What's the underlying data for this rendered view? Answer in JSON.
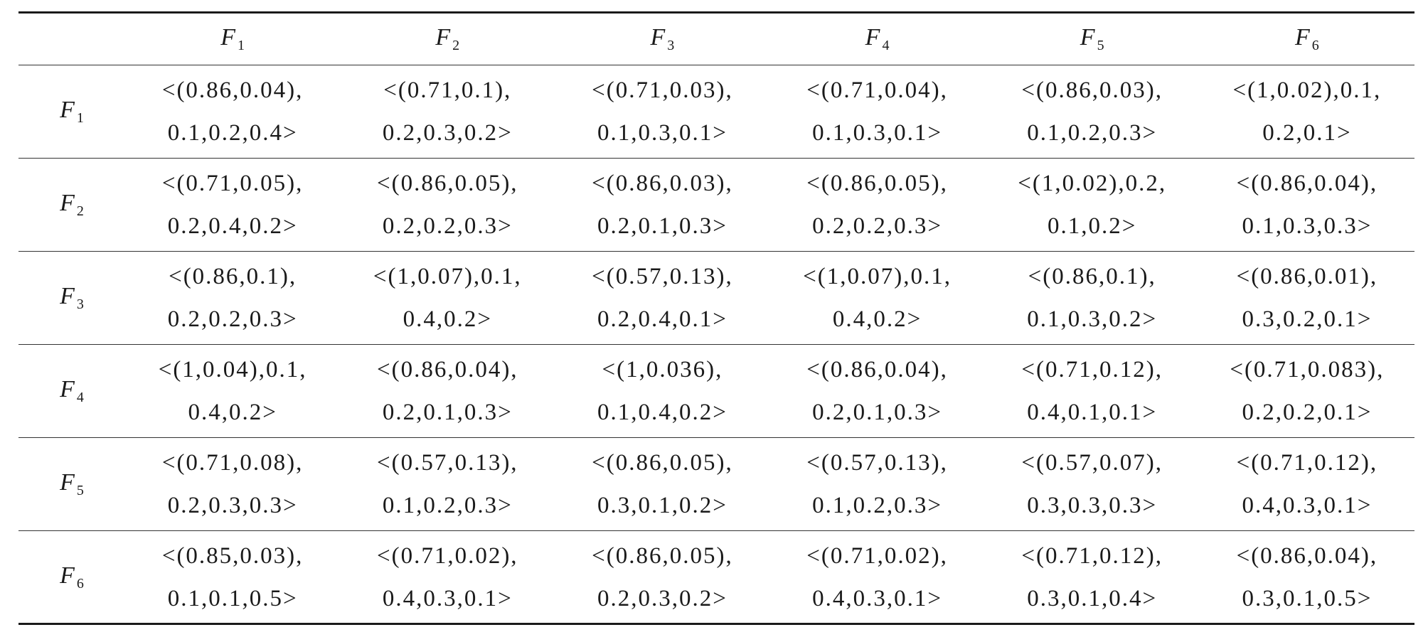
{
  "table": {
    "factor_symbol": "F",
    "columns": [
      "1",
      "2",
      "3",
      "4",
      "5",
      "6"
    ],
    "rows": [
      {
        "label": "1",
        "cells": [
          [
            "<(0.86,0.04),",
            "0.1,0.2,0.4>"
          ],
          [
            "<(0.71,0.1),",
            "0.2,0.3,0.2>"
          ],
          [
            "<(0.71,0.03),",
            "0.1,0.3,0.1>"
          ],
          [
            "<(0.71,0.04),",
            "0.1,0.3,0.1>"
          ],
          [
            "<(0.86,0.03),",
            "0.1,0.2,0.3>"
          ],
          [
            "<(1,0.02),0.1,",
            "0.2,0.1>"
          ]
        ]
      },
      {
        "label": "2",
        "cells": [
          [
            "<(0.71,0.05),",
            "0.2,0.4,0.2>"
          ],
          [
            "<(0.86,0.05),",
            "0.2,0.2,0.3>"
          ],
          [
            "<(0.86,0.03),",
            "0.2,0.1,0.3>"
          ],
          [
            "<(0.86,0.05),",
            "0.2,0.2,0.3>"
          ],
          [
            "<(1,0.02),0.2,",
            "0.1,0.2>"
          ],
          [
            "<(0.86,0.04),",
            "0.1,0.3,0.3>"
          ]
        ]
      },
      {
        "label": "3",
        "cells": [
          [
            "<(0.86,0.1),",
            "0.2,0.2,0.3>"
          ],
          [
            "<(1,0.07),0.1,",
            "0.4,0.2>"
          ],
          [
            "<(0.57,0.13),",
            "0.2,0.4,0.1>"
          ],
          [
            "<(1,0.07),0.1,",
            "0.4,0.2>"
          ],
          [
            "<(0.86,0.1),",
            "0.1,0.3,0.2>"
          ],
          [
            "<(0.86,0.01),",
            "0.3,0.2,0.1>"
          ]
        ]
      },
      {
        "label": "4",
        "cells": [
          [
            "<(1,0.04),0.1,",
            "0.4,0.2>"
          ],
          [
            "<(0.86,0.04),",
            "0.2,0.1,0.3>"
          ],
          [
            "<(1,0.036),",
            "0.1,0.4,0.2>"
          ],
          [
            "<(0.86,0.04),",
            "0.2,0.1,0.3>"
          ],
          [
            "<(0.71,0.12),",
            "0.4,0.1,0.1>"
          ],
          [
            "<(0.71,0.083),",
            "0.2,0.2,0.1>"
          ]
        ]
      },
      {
        "label": "5",
        "cells": [
          [
            "<(0.71,0.08),",
            "0.2,0.3,0.3>"
          ],
          [
            "<(0.57,0.13),",
            "0.1,0.2,0.3>"
          ],
          [
            "<(0.86,0.05),",
            "0.3,0.1,0.2>"
          ],
          [
            "<(0.57,0.13),",
            "0.1,0.2,0.3>"
          ],
          [
            "<(0.57,0.07),",
            "0.3,0.3,0.3>"
          ],
          [
            "<(0.71,0.12),",
            "0.4,0.3,0.1>"
          ]
        ]
      },
      {
        "label": "6",
        "cells": [
          [
            "<(0.85,0.03),",
            "0.1,0.1,0.5>"
          ],
          [
            "<(0.71,0.02),",
            "0.4,0.3,0.1>"
          ],
          [
            "<(0.86,0.05),",
            "0.2,0.3,0.2>"
          ],
          [
            "<(0.71,0.02),",
            "0.4,0.3,0.1>"
          ],
          [
            "<(0.71,0.12),",
            "0.3,0.1,0.4>"
          ],
          [
            "<(0.86,0.04),",
            "0.3,0.1,0.5>"
          ]
        ]
      }
    ]
  }
}
